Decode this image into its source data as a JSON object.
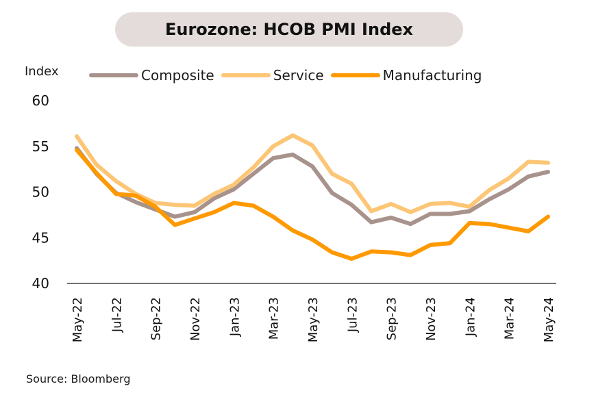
{
  "chart_data": {
    "type": "line",
    "title": "Eurozone: HCOB PMI Index",
    "ylabel": "Index",
    "source": "Source: Bloomberg",
    "ylim": [
      40,
      60
    ],
    "yticks": [
      40,
      45,
      50,
      55,
      60
    ],
    "grid": false,
    "legend": "top",
    "categories": [
      "May-22",
      "Jun-22",
      "Jul-22",
      "Aug-22",
      "Sep-22",
      "Oct-22",
      "Nov-22",
      "Dec-22",
      "Jan-23",
      "Feb-23",
      "Mar-23",
      "Apr-23",
      "May-23",
      "Jun-23",
      "Jul-23",
      "Aug-23",
      "Sep-23",
      "Oct-23",
      "Nov-23",
      "Dec-23",
      "Jan-24",
      "Feb-24",
      "Mar-24",
      "Apr-24",
      "May-24"
    ],
    "tick_labels": [
      "May-22",
      "Jul-22",
      "Sep-22",
      "Nov-22",
      "Jan-23",
      "Mar-23",
      "May-23",
      "Jul-23",
      "Sep-23",
      "Nov-23",
      "Jan-24",
      "Mar-24",
      "May-24"
    ],
    "series": [
      {
        "name": "Composite",
        "color": "#a8928c",
        "values": [
          54.8,
          52.0,
          49.9,
          48.9,
          48.1,
          47.3,
          47.8,
          49.3,
          50.3,
          52.0,
          53.7,
          54.1,
          52.8,
          49.9,
          48.6,
          46.7,
          47.2,
          46.5,
          47.6,
          47.6,
          47.9,
          49.2,
          50.3,
          51.7,
          52.2
        ]
      },
      {
        "name": "Service",
        "color": "#fcc676",
        "values": [
          56.1,
          53.0,
          51.2,
          49.8,
          48.8,
          48.6,
          48.5,
          49.8,
          50.8,
          52.7,
          55.0,
          56.2,
          55.1,
          52.0,
          50.9,
          47.9,
          48.7,
          47.8,
          48.7,
          48.8,
          48.4,
          50.2,
          51.5,
          53.3,
          53.2
        ]
      },
      {
        "name": "Manufacturing",
        "color": "#ff9900",
        "values": [
          54.6,
          52.1,
          49.8,
          49.6,
          48.4,
          46.4,
          47.1,
          47.8,
          48.8,
          48.5,
          47.3,
          45.8,
          44.8,
          43.4,
          42.7,
          43.5,
          43.4,
          43.1,
          44.2,
          44.4,
          46.6,
          46.5,
          46.1,
          45.7,
          47.3
        ]
      }
    ]
  }
}
